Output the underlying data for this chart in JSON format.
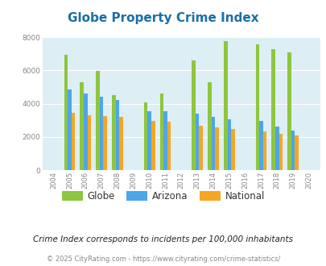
{
  "title": "Globe Property Crime Index",
  "years": [
    2005,
    2006,
    2007,
    2008,
    2010,
    2011,
    2013,
    2014,
    2015,
    2017,
    2018,
    2019
  ],
  "globe": [
    6950,
    5300,
    5950,
    4500,
    4100,
    4600,
    6600,
    5300,
    7750,
    7550,
    7300,
    7100
  ],
  "arizona": [
    4850,
    4600,
    4400,
    4250,
    3550,
    3550,
    3400,
    3200,
    3050,
    2950,
    2650,
    2400
  ],
  "national": [
    3450,
    3300,
    3250,
    3200,
    2950,
    2900,
    2700,
    2600,
    2500,
    2350,
    2200,
    2100
  ],
  "globe_color": "#8dc63f",
  "arizona_color": "#4da6e8",
  "national_color": "#f5a623",
  "bg_color": "#ddeef5",
  "ylim": [
    0,
    8000
  ],
  "yticks": [
    0,
    2000,
    4000,
    6000,
    8000
  ],
  "all_years": [
    2004,
    2005,
    2006,
    2007,
    2008,
    2009,
    2010,
    2011,
    2012,
    2013,
    2014,
    2015,
    2016,
    2017,
    2018,
    2019,
    2020
  ],
  "subtitle": "Crime Index corresponds to incidents per 100,000 inhabitants",
  "footer": "© 2025 CityRating.com - https://www.cityrating.com/crime-statistics/",
  "title_color": "#1a6fa8",
  "subtitle_color": "#222222",
  "footer_color": "#888888",
  "bar_width": 0.23,
  "xlim": [
    2003.3,
    2020.7
  ]
}
